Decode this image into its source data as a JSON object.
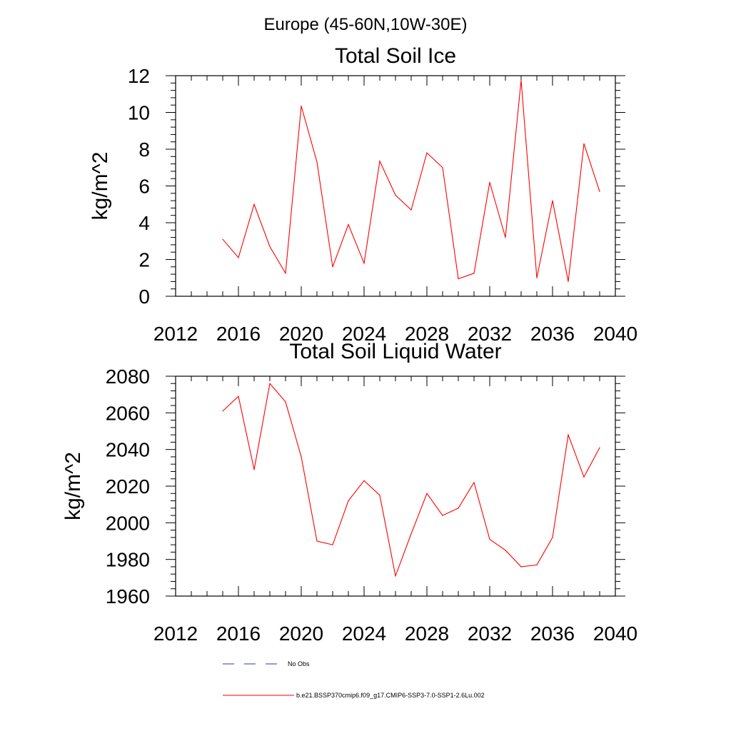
{
  "figure": {
    "suptitle": "Europe (45-60N,10W-30E)"
  },
  "chart_data": [
    {
      "type": "line",
      "title": "Total Soil Ice",
      "xlabel": "",
      "ylabel": "kg/m^2",
      "xlim": [
        2012,
        2040
      ],
      "ylim": [
        0,
        12
      ],
      "xticks": [
        2012,
        2016,
        2020,
        2024,
        2028,
        2032,
        2036,
        2040
      ],
      "yticks": [
        0,
        2,
        4,
        6,
        8,
        10,
        12
      ],
      "x": [
        2015,
        2016,
        2017,
        2018,
        2019,
        2020,
        2021,
        2022,
        2023,
        2024,
        2025,
        2026,
        2027,
        2028,
        2029,
        2030,
        2031,
        2032,
        2033,
        2034,
        2035,
        2036,
        2037,
        2038,
        2039
      ],
      "series": [
        {
          "color": "#ff0000",
          "values": [
            3.1,
            2.1,
            5.0,
            2.7,
            1.25,
            10.35,
            7.3,
            1.6,
            3.9,
            1.8,
            7.35,
            5.5,
            4.7,
            7.8,
            7.0,
            0.95,
            1.25,
            6.2,
            3.2,
            11.75,
            1.0,
            5.2,
            0.8,
            8.3,
            5.7
          ]
        }
      ],
      "grid": false
    },
    {
      "type": "line",
      "title": "Total Soil Liquid Water",
      "xlabel": "",
      "ylabel": "kg/m^2",
      "xlim": [
        2012,
        2040
      ],
      "ylim": [
        1960,
        2080
      ],
      "xticks": [
        2012,
        2016,
        2020,
        2024,
        2028,
        2032,
        2036,
        2040
      ],
      "yticks": [
        1960,
        1980,
        2000,
        2020,
        2040,
        2060,
        2080
      ],
      "x": [
        2015,
        2016,
        2017,
        2018,
        2019,
        2020,
        2021,
        2022,
        2023,
        2024,
        2025,
        2026,
        2027,
        2028,
        2029,
        2030,
        2031,
        2032,
        2033,
        2034,
        2035,
        2036,
        2037,
        2038,
        2039
      ],
      "series": [
        {
          "color": "#ff0000",
          "values": [
            2061,
            2069,
            2029,
            2076,
            2066,
            2036,
            1990,
            1988,
            2012,
            2023,
            2015,
            1971,
            1994,
            2016,
            2004,
            2008,
            2022,
            1991,
            1985,
            1976,
            1977,
            1992,
            2048,
            2025,
            2041
          ]
        }
      ],
      "grid": false
    }
  ],
  "legend": {
    "placement": "bottom",
    "items": [
      {
        "label": "No Obs",
        "color": "#3333aa",
        "style": "dashed"
      },
      {
        "label": "b.e21.BSSP370cmip6.f09_g17.CMIP6-SSP3-7.0-SSP1-2.6Lu.002",
        "color": "#ff0000",
        "style": "solid"
      }
    ]
  }
}
